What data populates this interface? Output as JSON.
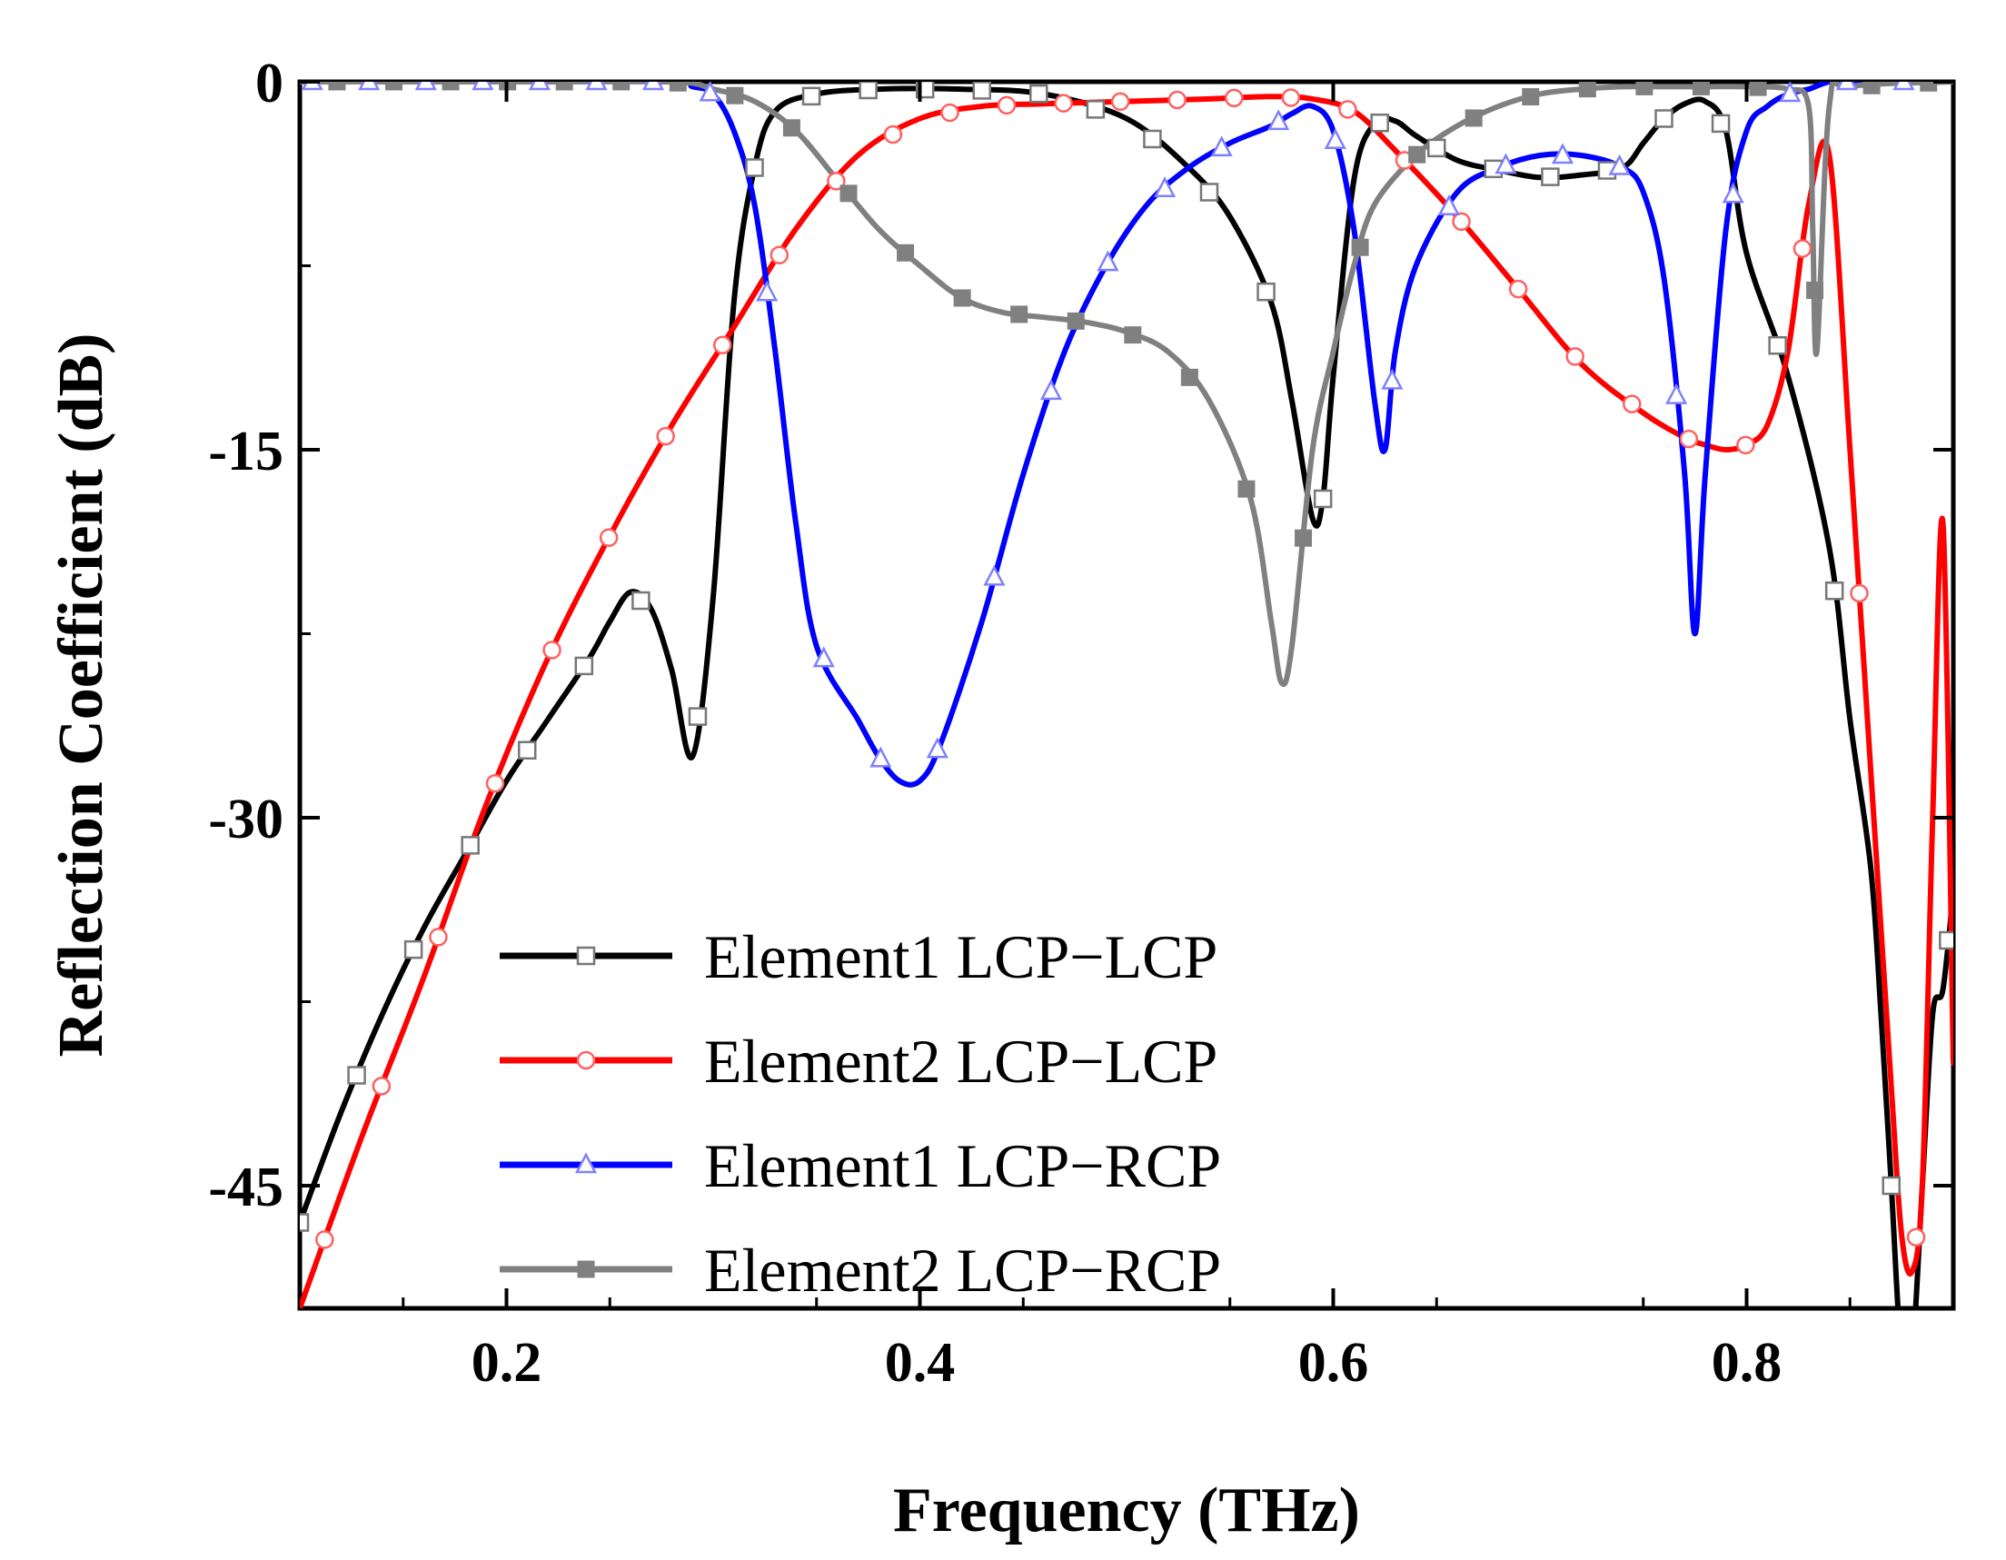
{
  "chart_data": {
    "type": "line",
    "title": "",
    "xlabel": "Frequency (THz)",
    "ylabel": "Reflection Coefficient (dB)",
    "xlim": [
      0.1,
      0.9
    ],
    "ylim": [
      -50,
      0
    ],
    "xticks": [
      0.2,
      0.4,
      0.6,
      0.8
    ],
    "xtick_labels": [
      "0.2",
      "0.4",
      "0.6",
      "0.8"
    ],
    "yticks": [
      0,
      -15,
      -30,
      -45
    ],
    "ytick_labels": [
      "0",
      "-15",
      "-30",
      "-45"
    ],
    "grid": false,
    "legend_position": "bottom-center",
    "series": [
      {
        "name": "Element1 LCP−LCP",
        "color": "#000000",
        "marker": "open-square",
        "x": [
          0.1,
          0.12,
          0.14,
          0.16,
          0.18,
          0.2,
          0.22,
          0.24,
          0.25,
          0.26,
          0.27,
          0.28,
          0.29,
          0.3,
          0.31,
          0.32,
          0.33,
          0.35,
          0.38,
          0.42,
          0.46,
          0.5,
          0.53,
          0.55,
          0.57,
          0.58,
          0.59,
          0.595,
          0.6,
          0.61,
          0.62,
          0.63,
          0.64,
          0.66,
          0.68,
          0.7,
          0.72,
          0.74,
          0.75,
          0.76,
          0.77,
          0.78,
          0.79,
          0.8,
          0.82,
          0.84,
          0.85,
          0.86,
          0.865,
          0.87,
          0.875,
          0.88,
          0.885,
          0.89,
          0.895,
          0.9
        ],
        "y": [
          -46.5,
          -42,
          -38,
          -34.5,
          -31.5,
          -28.5,
          -26,
          -23.5,
          -22,
          -20.8,
          -21.5,
          -24,
          -27.5,
          -21,
          -9,
          -3.5,
          -1.2,
          -0.5,
          -0.3,
          -0.3,
          -0.5,
          -1.5,
          -3.5,
          -5.5,
          -9,
          -13,
          -17.8,
          -17,
          -12,
          -4,
          -1.7,
          -1.6,
          -2.2,
          -3.2,
          -3.6,
          -3.9,
          -3.8,
          -3.5,
          -2.5,
          -1.5,
          -0.9,
          -0.8,
          -2,
          -7,
          -12,
          -19,
          -26,
          -32,
          -38,
          -45,
          -52,
          -52,
          -45,
          -38,
          -37,
          -33
        ]
      },
      {
        "name": "Element2 LCP−LCP",
        "color": "#ff0000",
        "marker": "open-circle",
        "x": [
          0.1,
          0.13,
          0.16,
          0.19,
          0.22,
          0.25,
          0.28,
          0.31,
          0.34,
          0.37,
          0.4,
          0.43,
          0.46,
          0.5,
          0.54,
          0.57,
          0.59,
          0.61,
          0.63,
          0.66,
          0.69,
          0.72,
          0.75,
          0.77,
          0.78,
          0.79,
          0.8,
          0.81,
          0.82,
          0.83,
          0.84,
          0.85,
          0.86,
          0.87,
          0.875,
          0.88,
          0.885,
          0.89,
          0.895,
          0.9
        ],
        "y": [
          -50,
          -43,
          -36.5,
          -29.5,
          -23.5,
          -18.5,
          -14,
          -10,
          -6,
          -3,
          -1.5,
          -1,
          -0.9,
          -0.8,
          -0.7,
          -0.6,
          -0.7,
          -1.2,
          -2.8,
          -5.5,
          -8.5,
          -11.5,
          -13.5,
          -14.5,
          -14.8,
          -15,
          -14.8,
          -14,
          -11,
          -5,
          -3,
          -15,
          -28,
          -41,
          -47,
          -48.5,
          -45,
          -30,
          -18,
          -40
        ]
      },
      {
        "name": "Element1 LCP−RCP",
        "color": "#0000ff",
        "marker": "open-triangle",
        "x": [
          0.1,
          0.2,
          0.28,
          0.29,
          0.3,
          0.31,
          0.32,
          0.33,
          0.34,
          0.35,
          0.37,
          0.38,
          0.39,
          0.4,
          0.41,
          0.43,
          0.45,
          0.47,
          0.49,
          0.51,
          0.53,
          0.55,
          0.57,
          0.58,
          0.59,
          0.6,
          0.61,
          0.62,
          0.625,
          0.63,
          0.64,
          0.66,
          0.68,
          0.7,
          0.72,
          0.74,
          0.75,
          0.76,
          0.77,
          0.775,
          0.78,
          0.79,
          0.8,
          0.81,
          0.82,
          0.83,
          0.84,
          0.85,
          0.9
        ],
        "y": [
          0,
          0,
          0,
          -0.2,
          -0.5,
          -2,
          -5,
          -11,
          -18,
          -23,
          -26,
          -27.5,
          -28.5,
          -28.5,
          -27,
          -22,
          -16,
          -11,
          -7.5,
          -5,
          -3.5,
          -2.5,
          -1.8,
          -1.3,
          -1,
          -2,
          -6,
          -13,
          -15,
          -11,
          -7.5,
          -4.5,
          -3.5,
          -3,
          -3,
          -3.5,
          -4.5,
          -8,
          -16,
          -22.5,
          -16,
          -6,
          -2,
          -1,
          -0.5,
          -0.3,
          0,
          0,
          0
        ]
      },
      {
        "name": "Element2 LCP−RCP",
        "color": "#808080",
        "marker": "filled-square",
        "x": [
          0.1,
          0.2,
          0.28,
          0.3,
          0.32,
          0.34,
          0.36,
          0.38,
          0.4,
          0.42,
          0.44,
          0.46,
          0.48,
          0.5,
          0.52,
          0.54,
          0.56,
          0.57,
          0.575,
          0.58,
          0.59,
          0.6,
          0.61,
          0.62,
          0.64,
          0.66,
          0.68,
          0.7,
          0.72,
          0.74,
          0.76,
          0.78,
          0.8,
          0.82,
          0.83,
          0.832,
          0.834,
          0.84,
          0.85,
          0.9
        ],
        "y": [
          0,
          0,
          0,
          -0.3,
          -0.8,
          -2,
          -4,
          -6,
          -7.5,
          -8.8,
          -9.4,
          -9.6,
          -9.8,
          -10.2,
          -11,
          -13,
          -17,
          -22,
          -24.5,
          -23,
          -15,
          -11,
          -7.5,
          -5,
          -3,
          -1.8,
          -1,
          -0.5,
          -0.3,
          -0.2,
          -0.2,
          -0.2,
          -0.2,
          -0.3,
          -1,
          -6,
          -11,
          -1,
          -0.2,
          0
        ]
      }
    ]
  }
}
